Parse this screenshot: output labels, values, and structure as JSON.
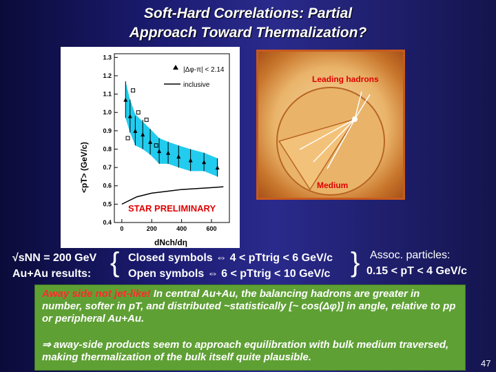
{
  "slide": {
    "title_line1": "Soft-Hard Correlations:  Partial",
    "title_line2": "Approach Toward Thermalization?",
    "page_number": "47"
  },
  "chart_data": {
    "type": "scatter",
    "ylabel": "<pT>  (GeV/c)",
    "xlabel": "dNch/dη",
    "xlim": [
      -50,
      720
    ],
    "ylim": [
      0.4,
      1.32
    ],
    "xticks": [
      0,
      200,
      400,
      600
    ],
    "yticks": [
      0.4,
      0.5,
      0.6,
      0.7,
      0.8,
      0.9,
      1.0,
      1.1,
      1.2,
      1.3
    ],
    "legend": {
      "entry1": "|Δφ-π| < 2.14",
      "entry2": "inclusive",
      "position": "top-right"
    },
    "annotation": "STAR PRELIMINARY",
    "series": [
      {
        "name": "|Δφ-π| < 2.14",
        "x": [
          25,
          55,
          90,
          140,
          190,
          250,
          310,
          380,
          460,
          550,
          640
        ],
        "y": [
          1.07,
          0.98,
          0.9,
          0.88,
          0.84,
          0.79,
          0.78,
          0.76,
          0.74,
          0.73,
          0.7
        ],
        "err": [
          0.1,
          0.09,
          0.08,
          0.08,
          0.07,
          0.07,
          0.06,
          0.06,
          0.06,
          0.05,
          0.05
        ]
      },
      {
        "name": "inclusive",
        "x": [
          0,
          100,
          200,
          300,
          400,
          500,
          600,
          680
        ],
        "y": [
          0.5,
          0.54,
          0.56,
          0.57,
          0.58,
          0.585,
          0.59,
          0.595
        ]
      }
    ],
    "open_symbols": {
      "x": [
        40,
        75,
        110,
        165,
        230
      ],
      "y": [
        0.86,
        1.12,
        1.0,
        0.96,
        0.82
      ]
    },
    "band_upper": [
      1.17,
      1.07,
      0.99,
      0.95,
      0.91,
      0.86,
      0.84,
      0.82,
      0.8,
      0.78,
      0.75
    ],
    "band_lower": [
      0.97,
      0.89,
      0.82,
      0.8,
      0.77,
      0.72,
      0.72,
      0.7,
      0.68,
      0.68,
      0.65
    ]
  },
  "cartoon": {
    "label_top": "Leading hadrons",
    "label_bottom": "Medium"
  },
  "conditions": {
    "sqrt_s": "√sNN = 200 GeV",
    "au_au": "Au+Au results:",
    "closed": "Closed symbols  ⇔  4 < pTtrig < 6 GeV/c",
    "open": "Open symbols  ⇔  6 < pTtrig < 10 GeV/c",
    "assoc_title": "Assoc. particles:",
    "assoc_range": "0.15 < pT < 4 GeV/c"
  },
  "note": {
    "red_part": "Away side not  jet-like!",
    "para1": "  In central Au+Au, the balancing hadrons are greater in number, softer in pT, and distributed ~statistically [~ cos(Δφ)] in angle, relative to pp or peripheral Au+Au.",
    "para2": "⇒ away-side products seem to approach equilibration with bulk medium traversed, making thermalization of the bulk itself quite plausible."
  }
}
